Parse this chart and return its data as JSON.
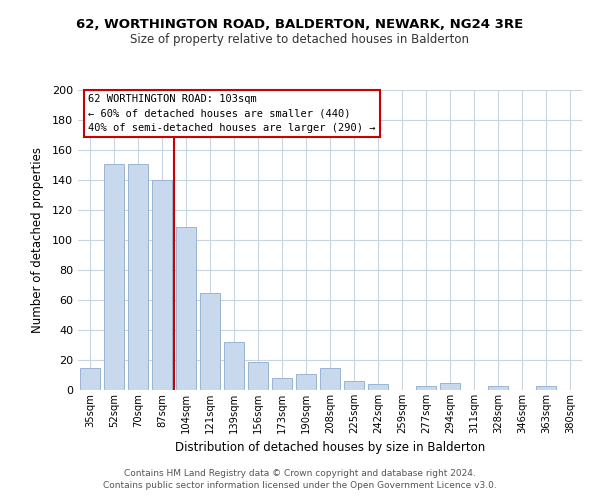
{
  "title": "62, WORTHINGTON ROAD, BALDERTON, NEWARK, NG24 3RE",
  "subtitle": "Size of property relative to detached houses in Balderton",
  "xlabel": "Distribution of detached houses by size in Balderton",
  "ylabel": "Number of detached properties",
  "bar_color": "#c8d8ed",
  "bar_edge_color": "#9ab4d4",
  "vline_color": "#cc0000",
  "categories": [
    "35sqm",
    "52sqm",
    "70sqm",
    "87sqm",
    "104sqm",
    "121sqm",
    "139sqm",
    "156sqm",
    "173sqm",
    "190sqm",
    "208sqm",
    "225sqm",
    "242sqm",
    "259sqm",
    "277sqm",
    "294sqm",
    "311sqm",
    "328sqm",
    "346sqm",
    "363sqm",
    "380sqm"
  ],
  "values": [
    15,
    151,
    151,
    140,
    109,
    65,
    32,
    19,
    8,
    11,
    15,
    6,
    4,
    0,
    3,
    5,
    0,
    3,
    0,
    3,
    0
  ],
  "ylim": [
    0,
    200
  ],
  "yticks": [
    0,
    20,
    40,
    60,
    80,
    100,
    120,
    140,
    160,
    180,
    200
  ],
  "annotation_title": "62 WORTHINGTON ROAD: 103sqm",
  "annotation_line1": "← 60% of detached houses are smaller (440)",
  "annotation_line2": "40% of semi-detached houses are larger (290) →",
  "annotation_box_color": "#ffffff",
  "annotation_box_edge": "#cc0000",
  "footer_line1": "Contains HM Land Registry data © Crown copyright and database right 2024.",
  "footer_line2": "Contains public sector information licensed under the Open Government Licence v3.0.",
  "background_color": "#ffffff",
  "grid_color": "#c8d4e0"
}
